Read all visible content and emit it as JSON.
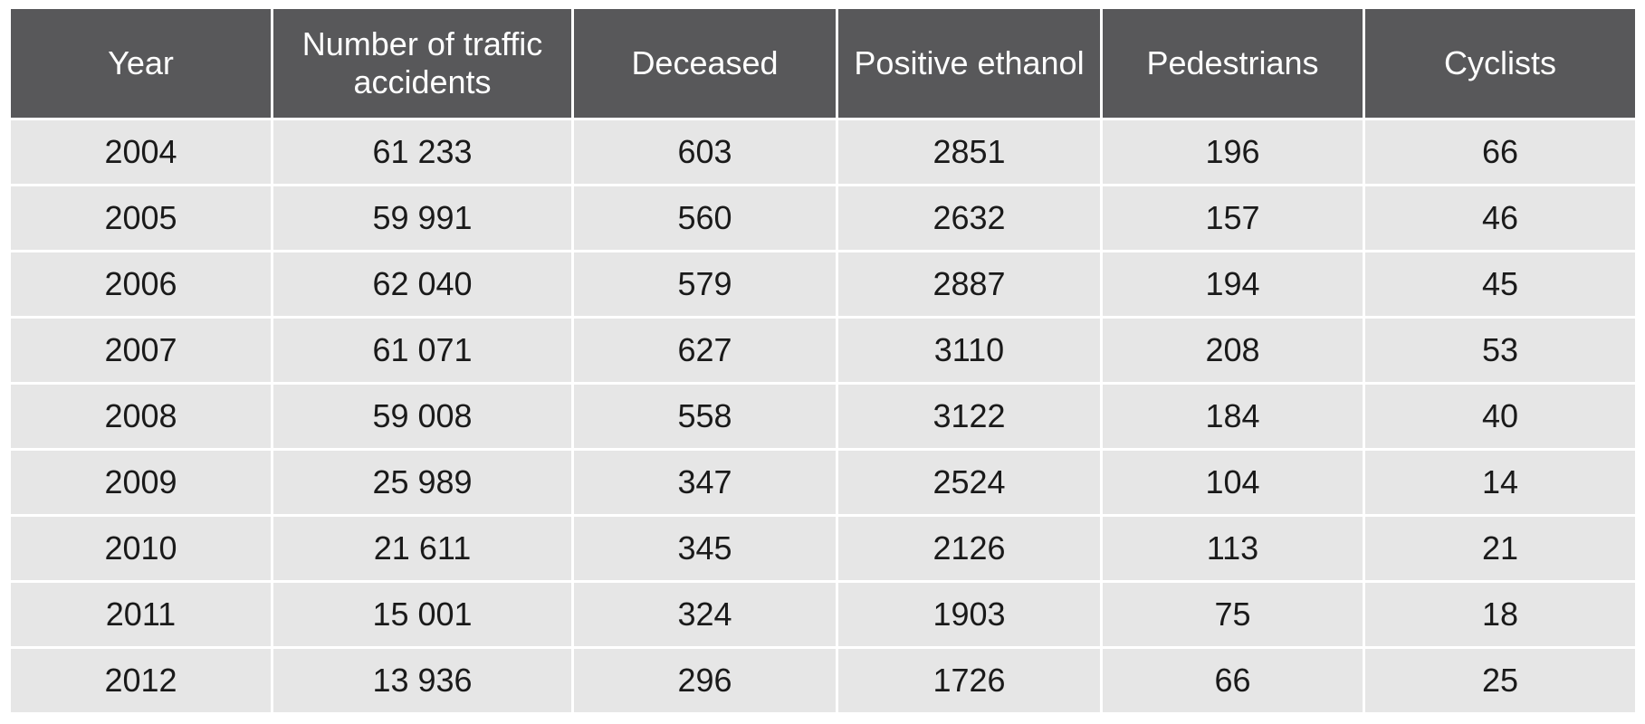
{
  "table": {
    "headers": [
      "Year",
      "Number of traffic accidents",
      "Deceased",
      "Positive ethanol",
      "Pedestrians",
      "Cyclists"
    ],
    "rows": [
      [
        "2004",
        "61 233",
        "603",
        "2851",
        "196",
        "66"
      ],
      [
        "2005",
        "59 991",
        "560",
        "2632",
        "157",
        "46"
      ],
      [
        "2006",
        "62 040",
        "579",
        "2887",
        "194",
        "45"
      ],
      [
        "2007",
        "61 071",
        "627",
        "3110",
        "208",
        "53"
      ],
      [
        "2008",
        "59 008",
        "558",
        "3122",
        "184",
        "40"
      ],
      [
        "2009",
        "25 989",
        "347",
        "2524",
        "104",
        "14"
      ],
      [
        "2010",
        "21 611",
        "345",
        "2126",
        "113",
        "21"
      ],
      [
        "2011",
        "15 001",
        "324",
        "1903",
        "75",
        "18"
      ],
      [
        "2012",
        "13 936",
        "296",
        "1726",
        "66",
        "25"
      ]
    ]
  },
  "colors": {
    "header_background": "#58585a",
    "header_text": "#ffffff",
    "cell_background": "#e6e6e6",
    "cell_text": "#1a1a1a",
    "grid_lines": "#ffffff"
  }
}
